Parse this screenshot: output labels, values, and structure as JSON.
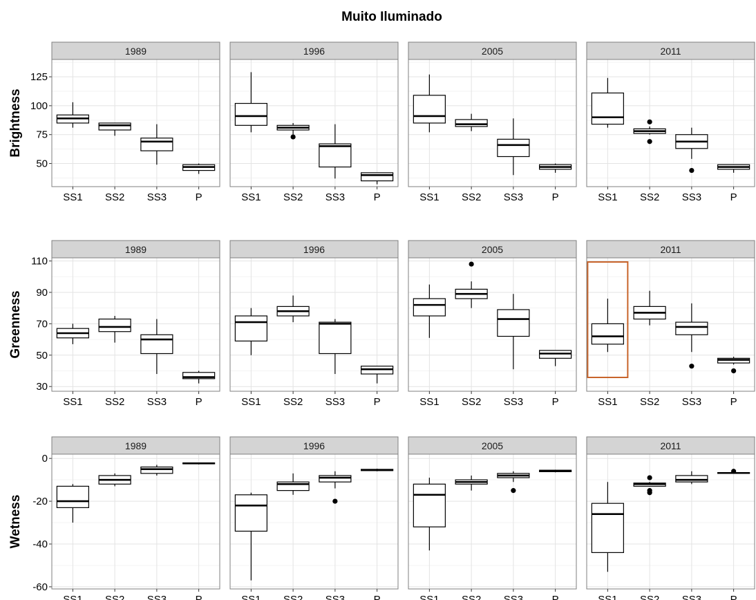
{
  "title": "Muito Iluminado",
  "highlight_color": "#c8642a",
  "chart_data": [
    {
      "type": "boxplot",
      "ylabel": "Brightness",
      "ylim": [
        30,
        140
      ],
      "yticks": [
        50,
        75,
        100,
        125
      ],
      "facets": [
        "1989",
        "1996",
        "2005",
        "2011"
      ],
      "categories": [
        "SS1",
        "SS2",
        "SS3",
        "P"
      ],
      "panels": [
        {
          "facet": "1989",
          "boxes": [
            {
              "category": "SS1",
              "lower": 81,
              "q1": 85,
              "median": 89,
              "q3": 92,
              "upper": 103,
              "outliers": []
            },
            {
              "category": "SS2",
              "lower": 74,
              "q1": 79,
              "median": 83,
              "q3": 85,
              "upper": 85,
              "outliers": []
            },
            {
              "category": "SS3",
              "lower": 49,
              "q1": 61,
              "median": 69,
              "q3": 72,
              "upper": 84,
              "outliers": []
            },
            {
              "category": "P",
              "lower": 41,
              "q1": 44,
              "median": 47,
              "q3": 49,
              "upper": 50,
              "outliers": []
            }
          ]
        },
        {
          "facet": "1996",
          "boxes": [
            {
              "category": "SS1",
              "lower": 77,
              "q1": 83,
              "median": 91,
              "q3": 102,
              "upper": 129,
              "outliers": []
            },
            {
              "category": "SS2",
              "lower": 75,
              "q1": 79,
              "median": 81,
              "q3": 83,
              "upper": 85,
              "outliers": [
                73
              ]
            },
            {
              "category": "SS3",
              "lower": 37,
              "q1": 47,
              "median": 65,
              "q3": 67,
              "upper": 84,
              "outliers": []
            },
            {
              "category": "P",
              "lower": 32,
              "q1": 35,
              "median": 40,
              "q3": 42,
              "upper": 42,
              "outliers": []
            }
          ]
        },
        {
          "facet": "2005",
          "boxes": [
            {
              "category": "SS1",
              "lower": 77,
              "q1": 85,
              "median": 91,
              "q3": 109,
              "upper": 127,
              "outliers": []
            },
            {
              "category": "SS2",
              "lower": 78,
              "q1": 82,
              "median": 84,
              "q3": 88,
              "upper": 93,
              "outliers": []
            },
            {
              "category": "SS3",
              "lower": 40,
              "q1": 56,
              "median": 66,
              "q3": 71,
              "upper": 89,
              "outliers": []
            },
            {
              "category": "P",
              "lower": 42,
              "q1": 45,
              "median": 47,
              "q3": 49,
              "upper": 50,
              "outliers": []
            }
          ]
        },
        {
          "facet": "2011",
          "boxes": [
            {
              "category": "SS1",
              "lower": 81,
              "q1": 84,
              "median": 90,
              "q3": 111,
              "upper": 124,
              "outliers": []
            },
            {
              "category": "SS2",
              "lower": 75,
              "q1": 76,
              "median": 78,
              "q3": 80,
              "upper": 82,
              "outliers": [
                86,
                69
              ]
            },
            {
              "category": "SS3",
              "lower": 54,
              "q1": 63,
              "median": 69,
              "q3": 75,
              "upper": 81,
              "outliers": [
                44
              ]
            },
            {
              "category": "P",
              "lower": 42,
              "q1": 45,
              "median": 47,
              "q3": 49,
              "upper": 49,
              "outliers": []
            }
          ]
        }
      ]
    },
    {
      "type": "boxplot",
      "ylabel": "Greenness",
      "ylim": [
        27,
        112
      ],
      "yticks": [
        30,
        50,
        70,
        90,
        110
      ],
      "facets": [
        "1989",
        "1996",
        "2005",
        "2011"
      ],
      "categories": [
        "SS1",
        "SS2",
        "SS3",
        "P"
      ],
      "highlight": {
        "facet": "2011",
        "category": "SS1"
      },
      "panels": [
        {
          "facet": "1989",
          "boxes": [
            {
              "category": "SS1",
              "lower": 57,
              "q1": 61,
              "median": 64,
              "q3": 67,
              "upper": 70,
              "outliers": []
            },
            {
              "category": "SS2",
              "lower": 58,
              "q1": 65,
              "median": 68,
              "q3": 73,
              "upper": 75,
              "outliers": []
            },
            {
              "category": "SS3",
              "lower": 38,
              "q1": 51,
              "median": 60,
              "q3": 63,
              "upper": 73,
              "outliers": []
            },
            {
              "category": "P",
              "lower": 32,
              "q1": 35,
              "median": 36,
              "q3": 39,
              "upper": 40,
              "outliers": []
            }
          ]
        },
        {
          "facet": "1996",
          "boxes": [
            {
              "category": "SS1",
              "lower": 50,
              "q1": 59,
              "median": 71,
              "q3": 75,
              "upper": 80,
              "outliers": []
            },
            {
              "category": "SS2",
              "lower": 71,
              "q1": 75,
              "median": 78,
              "q3": 81,
              "upper": 88,
              "outliers": []
            },
            {
              "category": "SS3",
              "lower": 38,
              "q1": 51,
              "median": 70,
              "q3": 71,
              "upper": 73,
              "outliers": []
            },
            {
              "category": "P",
              "lower": 32,
              "q1": 38,
              "median": 41,
              "q3": 43,
              "upper": 43,
              "outliers": []
            }
          ]
        },
        {
          "facet": "2005",
          "boxes": [
            {
              "category": "SS1",
              "lower": 61,
              "q1": 75,
              "median": 82,
              "q3": 86,
              "upper": 95,
              "outliers": []
            },
            {
              "category": "SS2",
              "lower": 80,
              "q1": 86,
              "median": 89,
              "q3": 92,
              "upper": 97,
              "outliers": [
                108
              ]
            },
            {
              "category": "SS3",
              "lower": 41,
              "q1": 62,
              "median": 73,
              "q3": 79,
              "upper": 89,
              "outliers": []
            },
            {
              "category": "P",
              "lower": 43,
              "q1": 48,
              "median": 51,
              "q3": 53,
              "upper": 53,
              "outliers": []
            }
          ]
        },
        {
          "facet": "2011",
          "boxes": [
            {
              "category": "SS1",
              "lower": 52,
              "q1": 57,
              "median": 62,
              "q3": 70,
              "upper": 86,
              "outliers": []
            },
            {
              "category": "SS2",
              "lower": 69,
              "q1": 73,
              "median": 77,
              "q3": 81,
              "upper": 91,
              "outliers": []
            },
            {
              "category": "SS3",
              "lower": 52,
              "q1": 63,
              "median": 68,
              "q3": 71,
              "upper": 83,
              "outliers": [
                43
              ]
            },
            {
              "category": "P",
              "lower": 44,
              "q1": 45,
              "median": 47,
              "q3": 48,
              "upper": 49,
              "outliers": [
                40
              ]
            }
          ]
        }
      ]
    },
    {
      "type": "boxplot",
      "ylabel": "Wetness",
      "ylim": [
        -61,
        2
      ],
      "yticks": [
        -60,
        -40,
        -20,
        0
      ],
      "facets": [
        "1989",
        "1996",
        "2005",
        "2011"
      ],
      "categories": [
        "SS1",
        "SS2",
        "SS3",
        "P"
      ],
      "panels": [
        {
          "facet": "1989",
          "boxes": [
            {
              "category": "SS1",
              "lower": -30,
              "q1": -23,
              "median": -20,
              "q3": -13,
              "upper": -12,
              "outliers": []
            },
            {
              "category": "SS2",
              "lower": -13,
              "q1": -12,
              "median": -10,
              "q3": -8,
              "upper": -7,
              "outliers": []
            },
            {
              "category": "SS3",
              "lower": -8,
              "q1": -7,
              "median": -5,
              "q3": -4,
              "upper": -3,
              "outliers": []
            },
            {
              "category": "P",
              "lower": -2.8,
              "q1": -2.5,
              "median": -2.3,
              "q3": -2.1,
              "upper": -1.9,
              "outliers": []
            }
          ]
        },
        {
          "facet": "1996",
          "boxes": [
            {
              "category": "SS1",
              "lower": -57,
              "q1": -34,
              "median": -22,
              "q3": -17,
              "upper": -16,
              "outliers": []
            },
            {
              "category": "SS2",
              "lower": -17,
              "q1": -15,
              "median": -12,
              "q3": -11,
              "upper": -7,
              "outliers": []
            },
            {
              "category": "SS3",
              "lower": -14,
              "q1": -11,
              "median": -9,
              "q3": -8,
              "upper": -6,
              "outliers": [
                -20
              ]
            },
            {
              "category": "P",
              "lower": -6,
              "q1": -5.7,
              "median": -5.4,
              "q3": -5.1,
              "upper": -4.8,
              "outliers": []
            }
          ]
        },
        {
          "facet": "2005",
          "boxes": [
            {
              "category": "SS1",
              "lower": -43,
              "q1": -32,
              "median": -17,
              "q3": -12,
              "upper": -9,
              "outliers": []
            },
            {
              "category": "SS2",
              "lower": -15,
              "q1": -12,
              "median": -11,
              "q3": -10,
              "upper": -8,
              "outliers": []
            },
            {
              "category": "SS3",
              "lower": -11,
              "q1": -9,
              "median": -8,
              "q3": -7,
              "upper": -6,
              "outliers": [
                -15
              ]
            },
            {
              "category": "P",
              "lower": -6.5,
              "q1": -6.2,
              "median": -5.8,
              "q3": -5.5,
              "upper": -5.3,
              "outliers": []
            }
          ]
        },
        {
          "facet": "2011",
          "boxes": [
            {
              "category": "SS1",
              "lower": -53,
              "q1": -44,
              "median": -26,
              "q3": -21,
              "upper": -11,
              "outliers": []
            },
            {
              "category": "SS2",
              "lower": -13,
              "q1": -13,
              "median": -12,
              "q3": -11.5,
              "upper": -11,
              "outliers": [
                -9,
                -15,
                -16
              ]
            },
            {
              "category": "SS3",
              "lower": -12,
              "q1": -11,
              "median": -10,
              "q3": -8,
              "upper": -6,
              "outliers": []
            },
            {
              "category": "P",
              "lower": -7.2,
              "q1": -7,
              "median": -6.8,
              "q3": -6.6,
              "upper": -6.4,
              "outliers": [
                -6
              ]
            }
          ]
        }
      ]
    }
  ]
}
